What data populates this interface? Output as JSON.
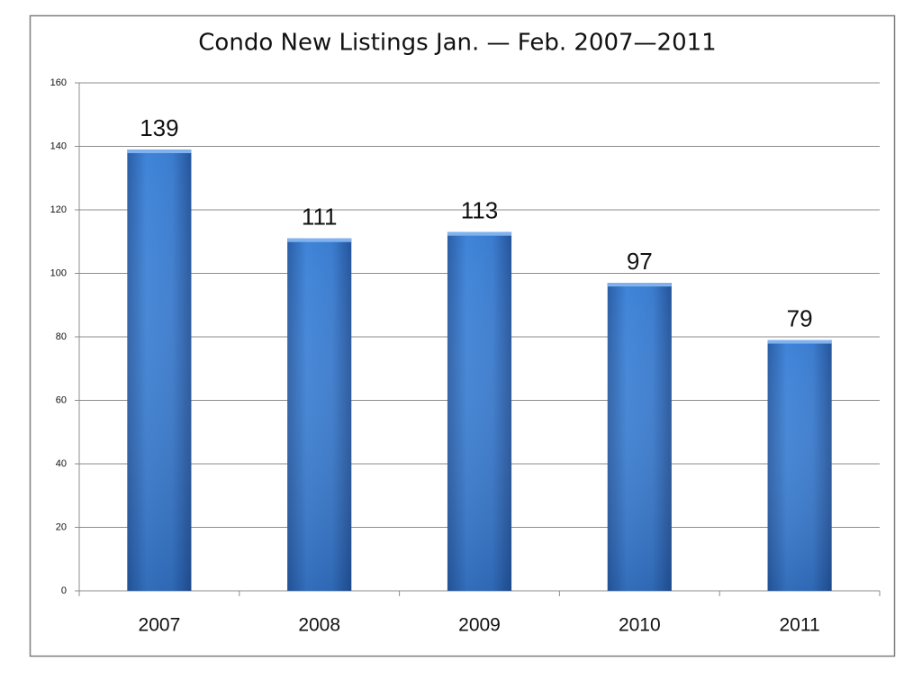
{
  "chart_data": {
    "type": "bar",
    "title": "Condo New Listings Jan. — Feb. 2007—2011",
    "categories": [
      "2007",
      "2008",
      "2009",
      "2010",
      "2011"
    ],
    "values": [
      139,
      111,
      113,
      97,
      79
    ],
    "color": "#3a7ccf",
    "ylim": [
      0,
      160
    ],
    "yticks": [
      0,
      20,
      40,
      60,
      80,
      100,
      120,
      140,
      160
    ],
    "grid": true
  }
}
